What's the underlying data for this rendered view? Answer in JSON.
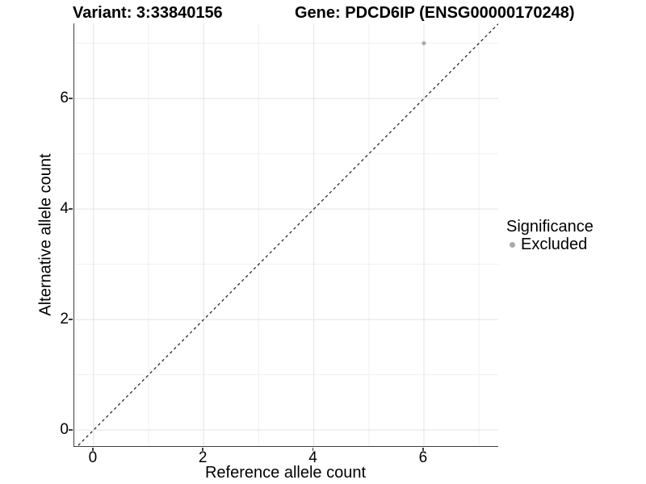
{
  "titles": {
    "variant": "Variant: 3:33840156",
    "gene": "Gene: PDCD6IP (ENSG00000170248)"
  },
  "chart_data": {
    "type": "scatter",
    "title_left": "Variant: 3:33840156",
    "title_right": "Gene: PDCD6IP (ENSG00000170248)",
    "xlabel": "Reference allele count",
    "ylabel": "Alternative allele count",
    "xlim": [
      -0.35,
      7.35
    ],
    "ylim": [
      -0.29,
      7.36
    ],
    "xticks": [
      0,
      2,
      4,
      6
    ],
    "yticks": [
      0,
      2,
      4,
      6
    ],
    "grid_minor": {
      "x": [
        1,
        3,
        5,
        7
      ],
      "y": [
        1,
        3,
        5,
        7
      ]
    },
    "grid": true,
    "points": [
      {
        "x": 6,
        "y": 7,
        "series": "Excluded"
      }
    ],
    "reference_line": {
      "type": "abline",
      "slope": 1,
      "intercept": 0,
      "style": "dashed"
    },
    "legend": {
      "position": "right",
      "title": "Significance",
      "items": [
        {
          "label": "Excluded",
          "color": "#a9a9a9"
        }
      ]
    }
  },
  "colors": {
    "point": "#a9a9a9",
    "grid_major": "#e3e3e3",
    "grid_minor": "#f0f0f0",
    "axis_line": "#3f3f3f",
    "abline": "#1a1a1a",
    "text": "#000000"
  }
}
